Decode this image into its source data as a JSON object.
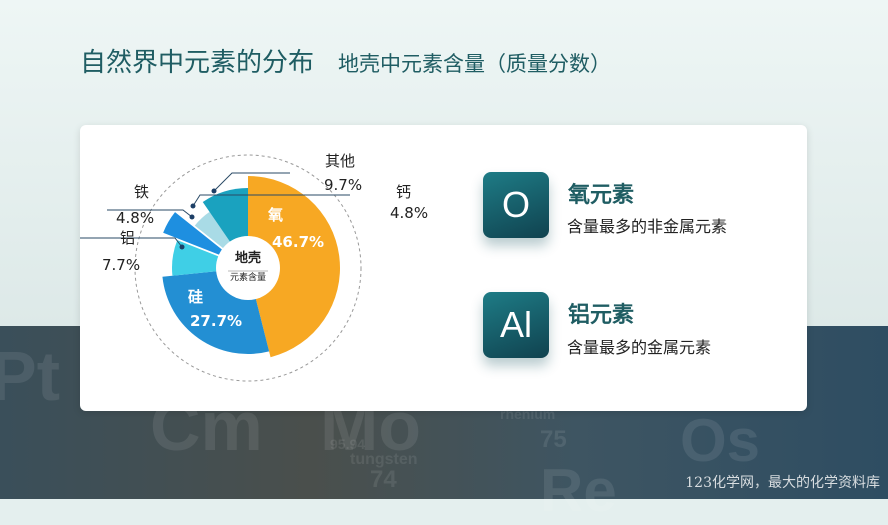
{
  "header": {
    "title": "自然界中元素的分布",
    "subtitle": "地壳中元素含量（质量分数）"
  },
  "chart_data": {
    "type": "pie",
    "center_title": "地壳",
    "center_subtitle": "元素含量",
    "slices": [
      {
        "label": "氧",
        "value": 46.7,
        "value_label": "46.7%",
        "color": "#f7a823"
      },
      {
        "label": "硅",
        "value": 27.7,
        "value_label": "27.7%",
        "color": "#238fd3"
      },
      {
        "label": "铝",
        "value": 7.7,
        "value_label": "7.7%",
        "color": "#3fcfe6"
      },
      {
        "label": "铁",
        "value": 4.8,
        "value_label": "4.8%",
        "color": "#1e8fe0"
      },
      {
        "label": "钙",
        "value": 4.8,
        "value_label": "4.8%",
        "color": "#a9dbe6"
      },
      {
        "label": "其他",
        "value": 9.7,
        "value_label": "9.7%",
        "color": "#1aa2bf"
      }
    ]
  },
  "elements": [
    {
      "symbol": "O",
      "name": "氧元素",
      "desc": "含量最多的非金属元素"
    },
    {
      "symbol": "Al",
      "name": "铝元素",
      "desc": "含量最多的金属元素"
    }
  ],
  "background": {
    "letters": [
      "Cm",
      "Mo",
      "Os",
      "Pt",
      "Re",
      "75",
      "74",
      "95.94",
      "tungsten",
      "rhenium"
    ]
  },
  "watermark": "123化学网，最大的化学资料库"
}
